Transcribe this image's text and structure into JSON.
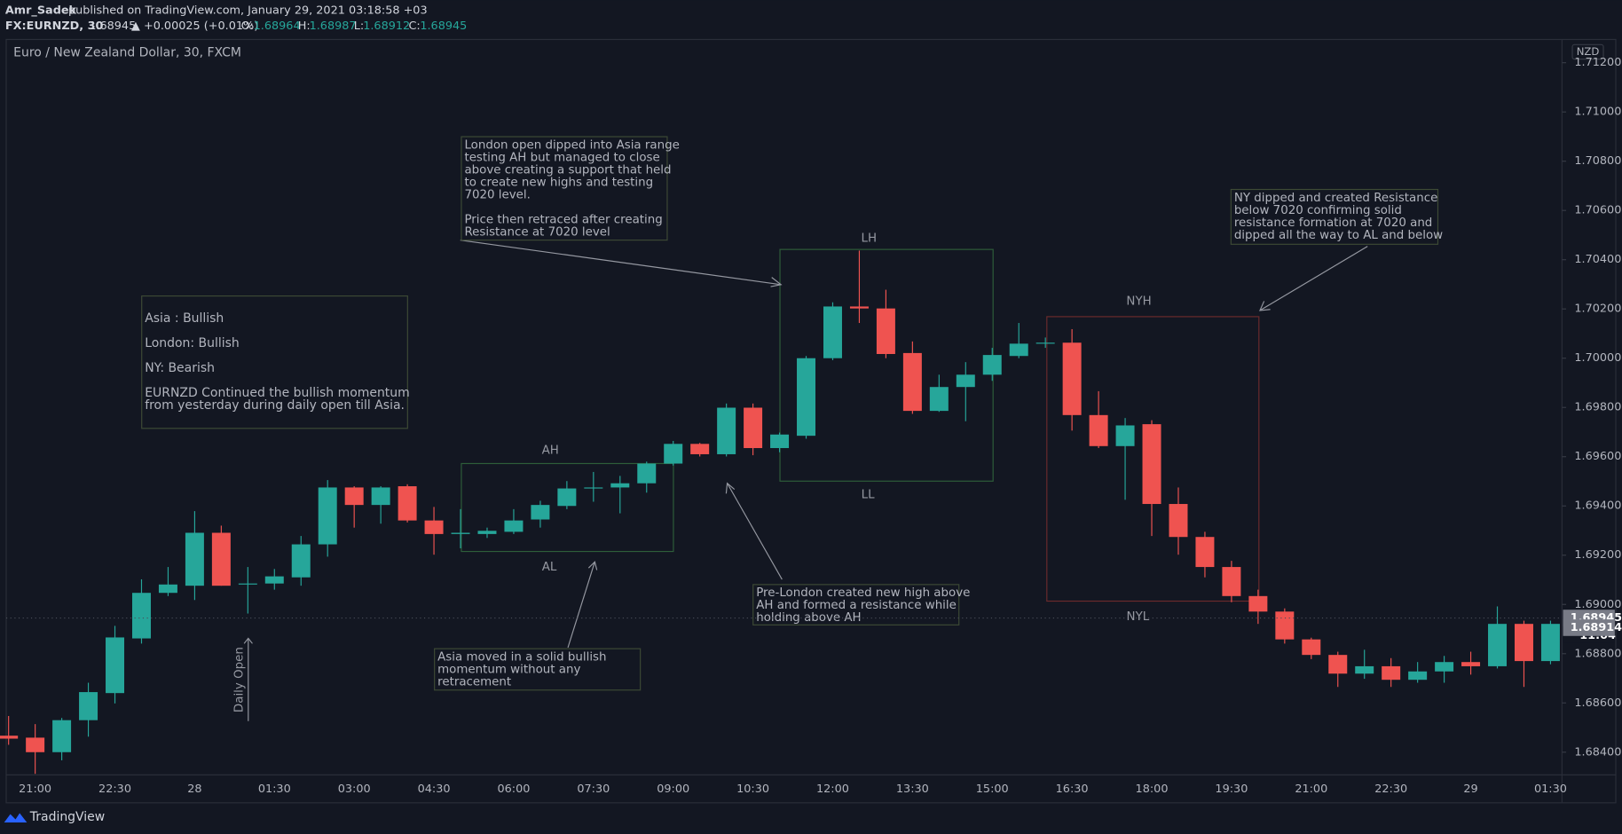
{
  "header": {
    "author": "Amr_Sadek",
    "published": "published on TradingView.com, January 29, 2021 03:18:58 +03",
    "symbol": "FX:EURNZD, 30",
    "last": "1.68945",
    "change": "▲ +0.00025 (+0.01%)",
    "o_label": "O:",
    "o": "1.68964",
    "h_label": "H:",
    "h": "1.68987",
    "l_label": "L:",
    "l": "1.68912",
    "c_label": "C:",
    "c": "1.68945"
  },
  "footer": {
    "brand": "TradingView"
  },
  "chart_data": {
    "type": "candlestick",
    "title": "Euro / New Zealand Dollar, 30, FXCM",
    "currency": "NZD",
    "up_color": "#26a69a",
    "down_color": "#ef5350",
    "categories": [
      null,
      "21:00",
      null,
      null,
      "22:30",
      null,
      null,
      "28",
      null,
      null,
      "01:30",
      null,
      null,
      "03:00",
      null,
      null,
      "04:30",
      null,
      null,
      "06:00",
      null,
      null,
      "07:30",
      null,
      null,
      "09:00",
      null,
      null,
      "10:30",
      null,
      null,
      "12:00",
      null,
      null,
      "13:30",
      null,
      null,
      "15:00",
      null,
      null,
      "16:30",
      null,
      null,
      "18:00",
      null,
      null,
      "19:30",
      null,
      null,
      "21:00",
      null,
      null,
      "22:30",
      null,
      null,
      "29",
      null,
      null,
      "01:30"
    ],
    "open": [
      1.68467,
      1.68459,
      1.684,
      1.6853,
      1.6864,
      1.68862,
      1.69047,
      1.69076,
      1.69291,
      1.69081,
      1.69085,
      1.6911,
      1.69244,
      1.69475,
      1.69404,
      1.6948,
      1.69341,
      1.69286,
      1.69286,
      1.69295,
      1.69345,
      1.694,
      1.69471,
      1.69475,
      1.69492,
      1.69572,
      1.69652,
      1.6961,
      1.69799,
      1.69635,
      1.69685,
      1.7,
      1.7021,
      1.70202,
      1.70021,
      1.69786,
      1.69883,
      1.69933,
      1.70009,
      1.70059,
      1.70063,
      1.69769,
      1.69643,
      1.69732,
      1.69408,
      1.69274,
      1.69152,
      1.69034,
      1.68971,
      1.68858,
      1.68795,
      1.68719,
      1.68749,
      1.68694,
      1.68728,
      1.68766,
      1.68749,
      1.68921,
      1.6877
    ],
    "high": [
      1.68547,
      1.68514,
      1.68539,
      1.68682,
      1.68913,
      1.69102,
      1.69152,
      1.69379,
      1.6932,
      1.69152,
      1.69144,
      1.69278,
      1.69505,
      1.6948,
      1.6948,
      1.69488,
      1.69396,
      1.69387,
      1.69312,
      1.69387,
      1.69421,
      1.69501,
      1.69538,
      1.69522,
      1.6958,
      1.69664,
      1.69656,
      1.69816,
      1.69816,
      1.69698,
      1.70009,
      1.70227,
      1.70437,
      1.70278,
      1.70068,
      1.69933,
      1.69984,
      1.70042,
      1.70143,
      1.70084,
      1.70118,
      1.69866,
      1.69757,
      1.69748,
      1.69475,
      1.69295,
      1.69177,
      1.6906,
      1.68984,
      1.68865,
      1.68808,
      1.68816,
      1.68782,
      1.68766,
      1.68791,
      1.68808,
      1.68992,
      1.68934,
      1.68934
    ],
    "low": [
      1.6843,
      1.68312,
      1.68367,
      1.68463,
      1.68598,
      1.68841,
      1.69034,
      1.69018,
      1.69076,
      1.68963,
      1.6906,
      1.69076,
      1.69194,
      1.69312,
      1.69328,
      1.69333,
      1.69202,
      1.69228,
      1.6927,
      1.69286,
      1.69312,
      1.69387,
      1.69417,
      1.6937,
      1.69454,
      1.69564,
      1.69601,
      1.69601,
      1.69606,
      1.69618,
      1.69673,
      1.69992,
      1.70143,
      1.7,
      1.69774,
      1.69782,
      1.69744,
      1.69908,
      1.7,
      1.70042,
      1.69706,
      1.69635,
      1.69425,
      1.69278,
      1.69202,
      1.6911,
      1.69009,
      1.68921,
      1.68841,
      1.68778,
      1.68665,
      1.68698,
      1.68665,
      1.68682,
      1.68682,
      1.68715,
      1.6874,
      1.68665,
      1.68757
    ],
    "close": [
      1.68455,
      1.684,
      1.6853,
      1.68644,
      1.68866,
      1.69047,
      1.69081,
      1.69291,
      1.69076,
      1.69085,
      1.69114,
      1.69244,
      1.69475,
      1.69404,
      1.69475,
      1.69341,
      1.69286,
      1.69291,
      1.69299,
      1.69341,
      1.69404,
      1.69471,
      1.69475,
      1.69492,
      1.69572,
      1.69652,
      1.6961,
      1.69799,
      1.69635,
      1.6969,
      1.7,
      1.7021,
      1.70202,
      1.70017,
      1.69786,
      1.69883,
      1.69933,
      1.70013,
      1.70059,
      1.70063,
      1.69769,
      1.69643,
      1.69727,
      1.69408,
      1.69274,
      1.69152,
      1.69034,
      1.68971,
      1.68858,
      1.68795,
      1.68719,
      1.68749,
      1.68694,
      1.68728,
      1.68766,
      1.68749,
      1.68921,
      1.6877,
      1.68921
    ],
    "ylim": [
      1.68312,
      1.71286
    ],
    "yticks": [
      {
        "value": 1.684,
        "label": "1.68400"
      },
      {
        "value": 1.686,
        "label": "1.68600"
      },
      {
        "value": 1.688,
        "label": "1.68800"
      },
      {
        "value": 1.69,
        "label": "1.69000"
      },
      {
        "value": 1.692,
        "label": "1.69200"
      },
      {
        "value": 1.694,
        "label": "1.69400"
      },
      {
        "value": 1.696,
        "label": "1.69600"
      },
      {
        "value": 1.698,
        "label": "1.69800"
      },
      {
        "value": 1.7,
        "label": "1.70000"
      },
      {
        "value": 1.702,
        "label": "1.70200"
      },
      {
        "value": 1.704,
        "label": "1.70400"
      },
      {
        "value": 1.706,
        "label": "1.70600"
      },
      {
        "value": 1.708,
        "label": "1.70800"
      },
      {
        "value": 1.71,
        "label": "1.71000"
      },
      {
        "value": 1.712,
        "label": "1.71200"
      }
    ],
    "price_line": {
      "value": 1.68945,
      "label": "1.68945"
    },
    "countdown": "11:04",
    "bid_line": {
      "value": 1.68914,
      "label": "1.68914"
    },
    "labels": {
      "ah": "AH",
      "al": "AL",
      "lh": "LH",
      "ll": "LL",
      "nyh": "NYH",
      "nyl": "NYL",
      "daily_open": "Daily Open"
    },
    "notes": {
      "london": [
        [
          "London open dipped into Asia range",
          "testing AH but managed to close",
          "above creating a support that held",
          "to create new highs and testing",
          "7020 level."
        ],
        [
          "Price then retraced after creating",
          "Resistance at 7020 level"
        ]
      ],
      "ny": [
        [
          "NY dipped and created Resistance",
          "below 7020 confirming solid",
          "resistance formation at 7020 and",
          "dipped all the way to AL and below"
        ]
      ],
      "summary": [
        [
          "Asia : Bullish"
        ],
        [
          "London: Bullish"
        ],
        [
          "NY: Bearish"
        ],
        [
          "EURNZD Continued the bullish momentum",
          "from yesterday during daily open till Asia."
        ]
      ],
      "prelondon": [
        [
          "Pre-London created new high above",
          "AH and formed a resistance while",
          "holding above AH"
        ]
      ],
      "asia": [
        [
          "Asia moved in a solid bullish",
          "momentum without any",
          "retracement"
        ]
      ]
    }
  }
}
